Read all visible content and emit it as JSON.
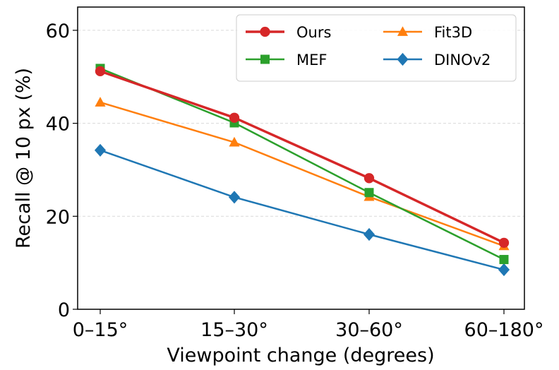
{
  "chart_data": {
    "type": "line",
    "xlabel": "Viewpoint change (degrees)",
    "ylabel": "Recall @ 10 px (%)",
    "categories": [
      "0–15°",
      "15–30°",
      "30–60°",
      "60–180°"
    ],
    "ylim": [
      0,
      65
    ],
    "yticks": [
      0,
      20,
      40,
      60
    ],
    "grid": "horizontal, dashed",
    "legend_position": "top-right",
    "series": [
      {
        "name": "Ours",
        "color": "#d62728",
        "marker": "circle",
        "values": [
          51.2,
          41.2,
          28.2,
          14.3
        ]
      },
      {
        "name": "MEF",
        "color": "#2ca02c",
        "marker": "square",
        "values": [
          51.8,
          40.1,
          25.1,
          10.7
        ]
      },
      {
        "name": "Fit3D",
        "color": "#ff7f0e",
        "marker": "triangle",
        "values": [
          44.5,
          35.9,
          24.2,
          13.6
        ]
      },
      {
        "name": "DINOv2",
        "color": "#1f77b4",
        "marker": "diamond",
        "values": [
          34.2,
          24.1,
          16.1,
          8.5
        ]
      }
    ]
  }
}
